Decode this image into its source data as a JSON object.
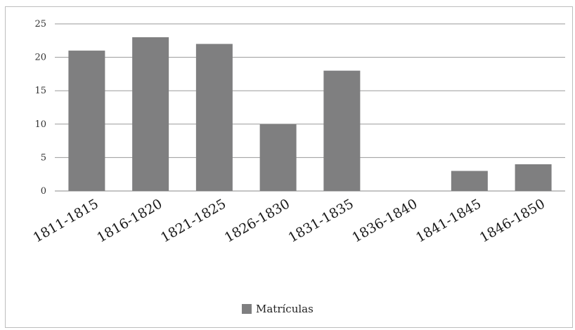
{
  "chart_data": {
    "type": "bar",
    "categories": [
      "1811-1815",
      "1816-1820",
      "1821-1825",
      "1826-1830",
      "1831-1835",
      "1836-1840",
      "1841-1845",
      "1846-1850"
    ],
    "series": [
      {
        "name": "Matrículas",
        "values": [
          21,
          23,
          22,
          10,
          18,
          0,
          3,
          4
        ],
        "color": "#7f7f80"
      }
    ],
    "yticks": [
      "0",
      "5",
      "10",
      "15",
      "20",
      "25"
    ],
    "ylim": [
      0,
      25
    ],
    "grid": true,
    "legend_position": "bottom"
  }
}
